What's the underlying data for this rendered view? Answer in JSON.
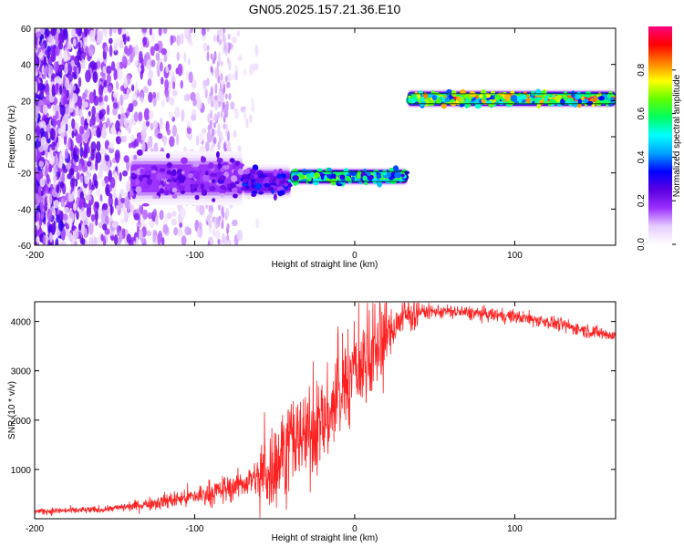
{
  "title": "GN05.2025.157.21.36.E10",
  "chart_data": [
    {
      "type": "heatmap",
      "xlabel": "Height of straight line (km)",
      "ylabel": "Frequency (Hz)",
      "xlim": [
        -200,
        163
      ],
      "ylim": [
        -60,
        60
      ],
      "xticks": [
        -200,
        -100,
        0,
        100
      ],
      "yticks": [
        -60,
        -40,
        -20,
        0,
        20,
        40,
        60
      ],
      "colorbar": {
        "label": "Normalized spectral amplitude",
        "range": [
          0,
          1
        ],
        "ticks": [
          0.0,
          0.2,
          0.4,
          0.6,
          0.8
        ],
        "colormap": [
          "#ffffff",
          "#e6ccff",
          "#9b30ff",
          "#5a00e0",
          "#0000ff",
          "#00a0ff",
          "#00ffff",
          "#00ff60",
          "#60ff00",
          "#ffff00",
          "#ff8000",
          "#ff0000",
          "#ff0080"
        ]
      },
      "ridge_segments": [
        {
          "x_start": -140,
          "x_end": -70,
          "freq": -23,
          "bandwidth": 16,
          "amplitude": 0.3
        },
        {
          "x_start": -70,
          "x_end": -40,
          "freq": -25,
          "bandwidth": 10,
          "amplitude": 0.4
        },
        {
          "x_start": -40,
          "x_end": 33,
          "freq": -22,
          "bandwidth": 5,
          "amplitude": 0.75
        },
        {
          "x_start": 33,
          "x_end": 163,
          "freq": 21,
          "bandwidth": 5,
          "amplitude": 0.95
        }
      ]
    },
    {
      "type": "line",
      "xlabel": "Height of straight line (km)",
      "ylabel": "SNR (10 * v/v)",
      "xlim": [
        -200,
        163
      ],
      "ylim": [
        0,
        4400
      ],
      "xticks": [
        -200,
        -100,
        0,
        100
      ],
      "yticks": [
        1000,
        2000,
        3000,
        4000
      ],
      "line_color": "#ff2020",
      "trend": {
        "x": [
          -200,
          -160,
          -140,
          -120,
          -100,
          -80,
          -60,
          -50,
          -40,
          -30,
          -20,
          -10,
          0,
          10,
          20,
          30,
          40,
          60,
          80,
          100,
          120,
          140,
          163
        ],
        "y": [
          150,
          180,
          250,
          350,
          450,
          600,
          850,
          1100,
          1500,
          1700,
          1900,
          2400,
          3000,
          3300,
          3700,
          4100,
          4200,
          4200,
          4150,
          4100,
          4000,
          3850,
          3700
        ]
      }
    }
  ]
}
